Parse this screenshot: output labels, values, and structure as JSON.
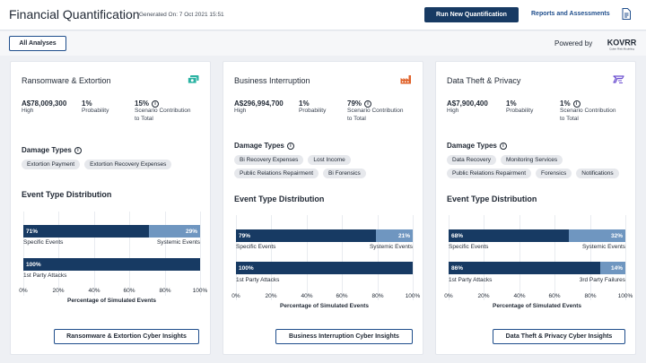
{
  "header": {
    "title": "Financial Quantification",
    "generated": "Generated On: 7 Oct 2021 15:51",
    "run_button": "Run New Quantification",
    "reports_link": "Reports and Assessments",
    "reports_icon": "document-icon"
  },
  "subbar": {
    "all_analyses": "All Analyses",
    "powered_by": "Powered by",
    "logo_text": "KOVRR",
    "logo_tagline": "Cyber Risk Modeling"
  },
  "colors": {
    "primary": "#173a63",
    "secondary_bar": "#6f96c0",
    "chip_bg": "#e6e8ec",
    "ransomware_icon": "#2bb3a3",
    "business_icon": "#e0632b",
    "datatheft_icon": "#6c4fd0"
  },
  "cards": [
    {
      "title": "Ransomware & Extortion",
      "icon": "money-icon",
      "metrics": {
        "loss": "A$78,009,300",
        "loss_label": "High",
        "probability": "1%",
        "probability_label": "Probability",
        "contribution": "15%",
        "contribution_label_1": "Scenario Contribution",
        "contribution_label_2": "to Total"
      },
      "damage_title": "Damage Types",
      "damage_types": [
        "Extortion Payment",
        "Extortion Recovery Expenses"
      ],
      "etd_title": "Event Type Distribution",
      "chart_data": {
        "type": "bar",
        "orientation": "horizontal-stacked-100",
        "xlabel": "Percentage of Simulated Events",
        "xticks": [
          "0%",
          "20%",
          "40%",
          "60%",
          "80%",
          "100%"
        ],
        "xlim": [
          0,
          100
        ],
        "rows": [
          {
            "values": [
              71,
              29
            ],
            "labels": [
              "71%",
              "29%"
            ],
            "left_category": "Specific Events",
            "right_category": "Systemic Events"
          },
          {
            "values": [
              100
            ],
            "labels": [
              "100%"
            ],
            "left_category": "1st Party Attacks",
            "right_category": ""
          }
        ]
      },
      "insights_button": "Ransomware & Extortion Cyber Insights"
    },
    {
      "title": "Business Interruption",
      "icon": "factory-icon",
      "metrics": {
        "loss": "A$296,994,700",
        "loss_label": "High",
        "probability": "1%",
        "probability_label": "Probability",
        "contribution": "79%",
        "contribution_label_1": "Scenario Contribution",
        "contribution_label_2": "to Total"
      },
      "damage_title": "Damage Types",
      "damage_types": [
        "Bi Recovery Expenses",
        "Lost Income",
        "Public Relations Repairment",
        "Bi Forensics"
      ],
      "etd_title": "Event Type Distribution",
      "chart_data": {
        "type": "bar",
        "orientation": "horizontal-stacked-100",
        "xlabel": "Percentage of Simulated Events",
        "xticks": [
          "0%",
          "20%",
          "40%",
          "60%",
          "80%",
          "100%"
        ],
        "xlim": [
          0,
          100
        ],
        "rows": [
          {
            "values": [
              79,
              21
            ],
            "labels": [
              "79%",
              "21%"
            ],
            "left_category": "Specific Events",
            "right_category": "Systemic Events"
          },
          {
            "values": [
              100
            ],
            "labels": [
              "100%"
            ],
            "left_category": "1st Party Attacks",
            "right_category": ""
          }
        ]
      },
      "insights_button": "Business Interruption Cyber Insights"
    },
    {
      "title": "Data Theft & Privacy",
      "icon": "data-theft-icon",
      "metrics": {
        "loss": "A$7,900,400",
        "loss_label": "High",
        "probability": "1%",
        "probability_label": "Probability",
        "contribution": "1%",
        "contribution_label_1": "Scenario Contribution",
        "contribution_label_2": "to Total"
      },
      "damage_title": "Damage Types",
      "damage_types": [
        "Data Recovery",
        "Monitoring Services",
        "Public Relations Repairment",
        "Forensics",
        "Notifications"
      ],
      "etd_title": "Event Type Distribution",
      "chart_data": {
        "type": "bar",
        "orientation": "horizontal-stacked-100",
        "xlabel": "Percentage of Simulated Events",
        "xticks": [
          "0%",
          "20%",
          "40%",
          "60%",
          "80%",
          "100%"
        ],
        "xlim": [
          0,
          100
        ],
        "rows": [
          {
            "values": [
              68,
              32
            ],
            "labels": [
              "68%",
              "32%"
            ],
            "left_category": "Specific Events",
            "right_category": "Systemic Events"
          },
          {
            "values": [
              86,
              14
            ],
            "labels": [
              "86%",
              "14%"
            ],
            "left_category": "1st Party Attacks",
            "right_category": "3rd Party Failures"
          }
        ]
      },
      "insights_button": "Data Theft & Privacy Cyber Insights"
    }
  ]
}
